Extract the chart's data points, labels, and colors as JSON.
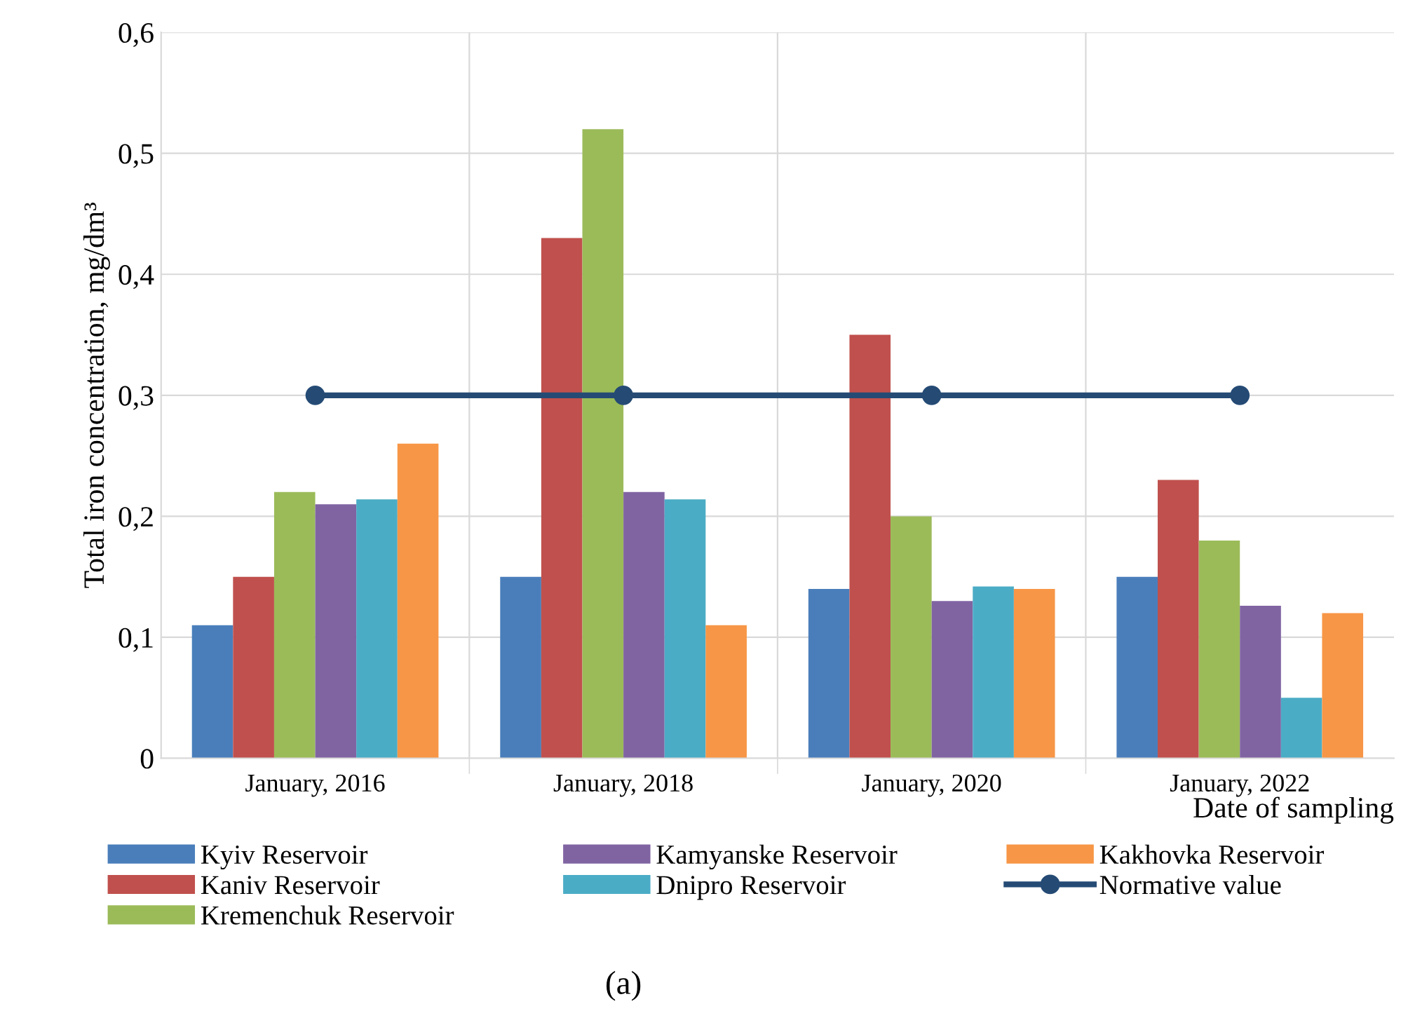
{
  "chart_data": {
    "type": "bar",
    "ylabel": "Total iron concentration, mg/dm³",
    "xlabel": "Date of sampling",
    "categories": [
      "January, 2016",
      "January, 2018",
      "January, 2020",
      "January, 2022"
    ],
    "series": [
      {
        "name": "Kyiv Reservoir",
        "color": "#4a7ebb",
        "values": [
          0.11,
          0.15,
          0.14,
          0.15
        ]
      },
      {
        "name": "Kaniv Reservoir",
        "color": "#c0504d",
        "values": [
          0.15,
          0.43,
          0.35,
          0.23
        ]
      },
      {
        "name": "Kremenchuk Reservoir",
        "color": "#9bbb59",
        "values": [
          0.22,
          0.52,
          0.2,
          0.18
        ]
      },
      {
        "name": "Kamyanske Reservoir",
        "color": "#8064a2",
        "values": [
          0.21,
          0.22,
          0.13,
          0.126
        ]
      },
      {
        "name": "Dnipro Reservoir",
        "color": "#4bacc6",
        "values": [
          0.214,
          0.214,
          0.142,
          0.05
        ]
      },
      {
        "name": "Kakhovka Reservoir",
        "color": "#f79646",
        "values": [
          0.26,
          0.11,
          0.14,
          0.12
        ]
      },
      {
        "name": "Normative value",
        "type": "line",
        "color": "#254b75",
        "marker": "circle",
        "values": [
          0.3,
          0.3,
          0.3,
          0.3
        ]
      }
    ],
    "ylim": [
      0,
      0.6
    ],
    "yticks": [
      {
        "value": 0,
        "label": "0"
      },
      {
        "value": 0.1,
        "label": "0,1"
      },
      {
        "value": 0.2,
        "label": "0,2"
      },
      {
        "value": 0.3,
        "label": "0,3"
      },
      {
        "value": 0.4,
        "label": "0,4"
      },
      {
        "value": 0.5,
        "label": "0,5"
      },
      {
        "value": 0.6,
        "label": "0,6"
      }
    ],
    "grid": true,
    "legend": "bottom",
    "annotations": [
      "(a)"
    ]
  }
}
